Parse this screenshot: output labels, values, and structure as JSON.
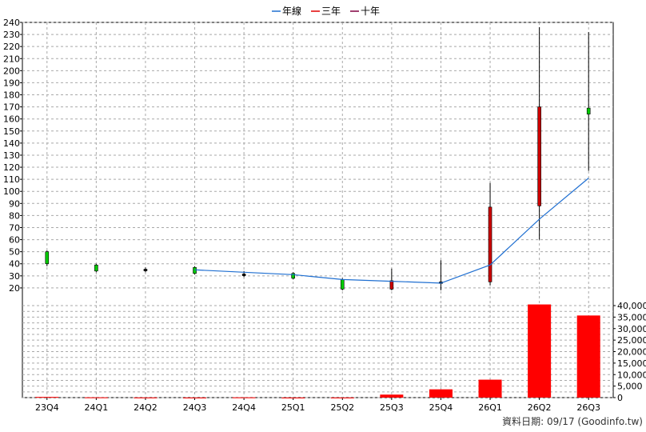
{
  "legend": [
    {
      "label": "年線",
      "color": "#1f6fd1"
    },
    {
      "label": "三年",
      "color": "#e00000"
    },
    {
      "label": "十年",
      "color": "#800040"
    }
  ],
  "source": "資料日期: 09/17  (Goodinfo.tw)",
  "chart_data": {
    "type": "candlestick",
    "categories": [
      "23Q4",
      "24Q1",
      "24Q2",
      "24Q3",
      "24Q4",
      "25Q1",
      "25Q2",
      "25Q3",
      "25Q4",
      "26Q1",
      "26Q2",
      "26Q3"
    ],
    "price_axis": {
      "ylim": [
        10,
        240
      ],
      "ticks": [
        20,
        30,
        40,
        50,
        60,
        70,
        80,
        90,
        100,
        110,
        120,
        130,
        140,
        150,
        160,
        170,
        180,
        190,
        200,
        210,
        220,
        230,
        240
      ]
    },
    "volume_axis": {
      "ylim": [
        0,
        40000
      ],
      "ticks": [
        0,
        5000,
        10000,
        15000,
        20000,
        25000,
        30000,
        35000,
        40000
      ],
      "tick_labels": [
        "0",
        "5,000",
        "10,000",
        "15,000",
        "20,000",
        "25,000",
        "30,000",
        "35,000",
        "40,000"
      ]
    },
    "candles": [
      {
        "q": "23Q4",
        "open": 40,
        "close": 50,
        "high": 51,
        "low": 38,
        "color": "green"
      },
      {
        "q": "24Q1",
        "open": 34,
        "close": 39,
        "high": 40,
        "low": 33,
        "color": "green"
      },
      {
        "q": "24Q2",
        "open": 35,
        "close": 35.5,
        "high": 37,
        "low": 33,
        "color": "black"
      },
      {
        "q": "24Q3",
        "open": 32,
        "close": 37,
        "high": 38,
        "low": 31,
        "color": "green"
      },
      {
        "q": "24Q4",
        "open": 31,
        "close": 31.5,
        "high": 34,
        "low": 29,
        "color": "black"
      },
      {
        "q": "25Q1",
        "open": 28,
        "close": 32,
        "high": 33,
        "low": 27,
        "color": "green"
      },
      {
        "q": "25Q2",
        "open": 19,
        "close": 27,
        "high": 28,
        "low": 18,
        "color": "green"
      },
      {
        "q": "25Q3",
        "open": 26,
        "close": 19,
        "high": 36,
        "low": 18,
        "color": "red"
      },
      {
        "q": "25Q4",
        "open": 25,
        "close": 25,
        "high": 43,
        "low": 18,
        "color": "black"
      },
      {
        "q": "26Q1",
        "open": 25,
        "close": 87,
        "high": 107,
        "low": 22,
        "color": "red"
      },
      {
        "q": "26Q2",
        "open": 88,
        "close": 170,
        "high": 236,
        "low": 60,
        "color": "red"
      },
      {
        "q": "26Q3",
        "open": 164,
        "close": 169,
        "high": 232,
        "low": 117,
        "color": "green"
      }
    ],
    "series": [
      {
        "name": "年線",
        "color": "#1f6fd1",
        "values": [
          null,
          null,
          null,
          35,
          33,
          31,
          27,
          25.5,
          24,
          39,
          77,
          111
        ]
      }
    ],
    "volume": [
      300,
      100,
      50,
      20,
      100,
      20,
      30,
      1300,
      3600,
      7800,
      40500,
      35700
    ]
  }
}
